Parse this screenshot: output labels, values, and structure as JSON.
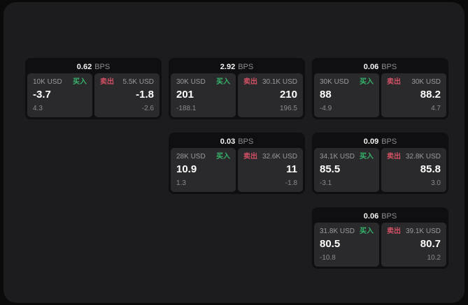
{
  "labels": {
    "bps_unit": "BPS",
    "buy": "买入",
    "sell": "卖出"
  },
  "colors": {
    "outside_bg": "#0a0a0a",
    "page_bg": "#1c1c1e",
    "card_bg": "#0f0f11",
    "panel_bg": "#2a2a2c",
    "buy_accent": "#36b36b",
    "sell_accent": "#d15064",
    "primary_text": "#ffffff",
    "secondary_text": "#9b9b9e"
  },
  "cards": [
    {
      "bps": "0.62",
      "buy": {
        "amount": "10K USD",
        "price": "-3.7",
        "delta": "4.3"
      },
      "sell": {
        "amount": "5.5K USD",
        "price": "-1.8",
        "delta": "-2.6"
      }
    },
    {
      "bps": "2.92",
      "buy": {
        "amount": "30K USD",
        "price": "201",
        "delta": "-188.1"
      },
      "sell": {
        "amount": "30.1K USD",
        "price": "210",
        "delta": "196.5"
      }
    },
    {
      "bps": "0.06",
      "buy": {
        "amount": "30K USD",
        "price": "88",
        "delta": "-4.9"
      },
      "sell": {
        "amount": "30K USD",
        "price": "88.2",
        "delta": "4.7"
      }
    },
    {
      "bps": "0.03",
      "buy": {
        "amount": "28K USD",
        "price": "10.9",
        "delta": "1.3"
      },
      "sell": {
        "amount": "32.6K USD",
        "price": "11",
        "delta": "-1.8"
      }
    },
    {
      "bps": "0.09",
      "buy": {
        "amount": "34.1K USD",
        "price": "85.5",
        "delta": "-3.1"
      },
      "sell": {
        "amount": "32.8K USD",
        "price": "85.8",
        "delta": "3.0"
      }
    },
    {
      "bps": "0.06",
      "buy": {
        "amount": "31.8K USD",
        "price": "80.5",
        "delta": "-10.8"
      },
      "sell": {
        "amount": "39.1K USD",
        "price": "80.7",
        "delta": "10.2"
      }
    }
  ]
}
